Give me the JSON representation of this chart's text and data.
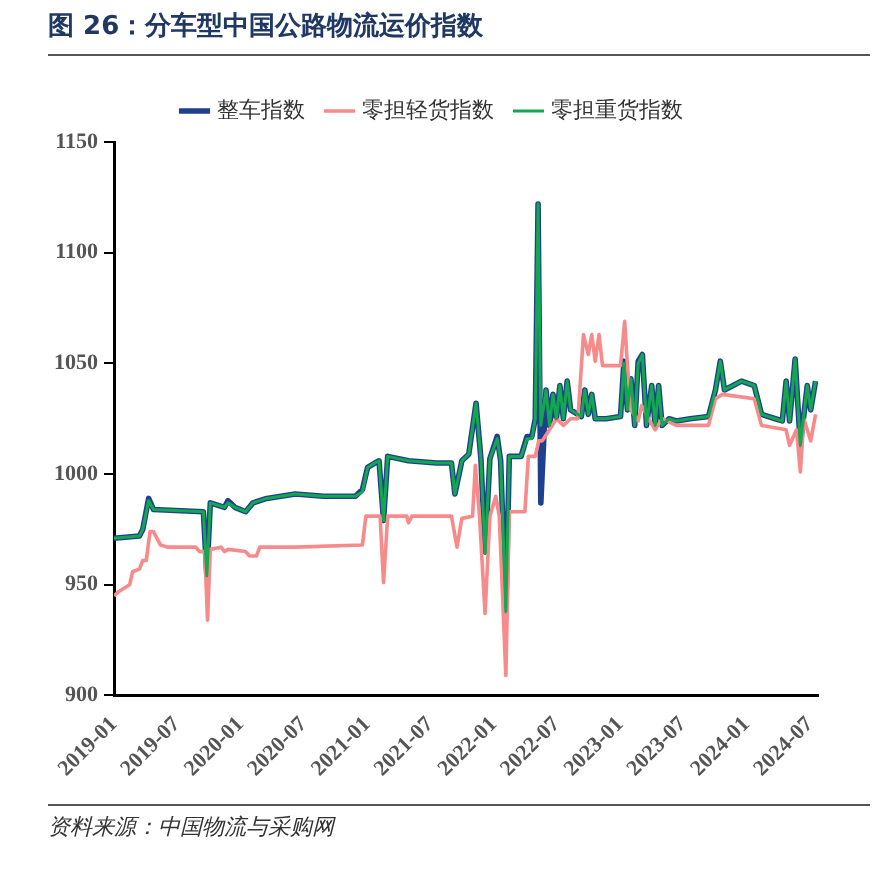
{
  "chart_data": {
    "type": "line",
    "title": "图 26：分车型中国公路物流运价指数",
    "annotations": [
      "资料来源：中国物流与采购网"
    ],
    "xlim": [
      "2019-01-01",
      "2024-07-25"
    ],
    "xticks": [
      "2019-01",
      "2019-07",
      "2020-01",
      "2020-07",
      "2021-01",
      "2021-07",
      "2022-01",
      "2022-07",
      "2023-01",
      "2023-07",
      "2024-01",
      "2024-07"
    ],
    "ylim": [
      900,
      1150
    ],
    "yticks": [
      900,
      950,
      1000,
      1050,
      1100,
      1150
    ],
    "grid": false,
    "legend": "top",
    "marker": "none",
    "line_style": "solid",
    "series": [
      {
        "name": "整车指数",
        "color": "#1f3f8f",
        "x": [
          "2019-01-01",
          "2019-03-15",
          "2019-03-25",
          "2019-04-11",
          "2019-04-25",
          "2019-09-16",
          "2019-09-26",
          "2019-10-06",
          "2019-11-16",
          "2019-11-26",
          "2019-12-16",
          "2020-01-16",
          "2020-02-06",
          "2020-03-17",
          "2020-06-07",
          "2020-08-28",
          "2020-11-28",
          "2020-12-18",
          "2021-01-02",
          "2021-01-23",
          "2021-02-04",
          "2021-02-17",
          "2021-03-01",
          "2021-04-30",
          "2021-07-20",
          "2021-09-01",
          "2021-09-11",
          "2021-10-01",
          "2021-10-21",
          "2021-11-11",
          "2021-11-25",
          "2021-12-07",
          "2021-12-21",
          "2022-01-11",
          "2022-01-21",
          "2022-02-05",
          "2022-02-15",
          "2022-03-21",
          "2022-04-07",
          "2022-04-21",
          "2022-05-01",
          "2022-05-09",
          "2022-05-17",
          "2022-06-01",
          "2022-06-11",
          "2022-06-21",
          "2022-07-01",
          "2022-07-11",
          "2022-07-21",
          "2022-08-01",
          "2022-08-11",
          "2022-09-11",
          "2022-09-21",
          "2022-10-01",
          "2022-10-11",
          "2022-10-21",
          "2022-11-21",
          "2023-01-02",
          "2023-01-12",
          "2023-01-22",
          "2023-02-01",
          "2023-02-12",
          "2023-02-22",
          "2023-03-06",
          "2023-03-18",
          "2023-04-02",
          "2023-04-12",
          "2023-04-22",
          "2023-05-02",
          "2023-05-22",
          "2023-06-12",
          "2023-07-22",
          "2023-09-13",
          "2023-10-03",
          "2023-10-17",
          "2023-10-29",
          "2023-11-23",
          "2023-12-17",
          "2024-01-23",
          "2024-02-13",
          "2024-03-24",
          "2024-04-13",
          "2024-04-24",
          "2024-05-04",
          "2024-05-20",
          "2024-06-04",
          "2024-06-24",
          "2024-07-04",
          "2024-07-18"
        ],
        "values": [
          971,
          972,
          975,
          989,
          984,
          983,
          954,
          987,
          985,
          988,
          985,
          983,
          987,
          989,
          991,
          990,
          990,
          993,
          1003,
          1005,
          1006,
          979,
          1008,
          1006,
          1005,
          1005,
          991,
          1006,
          1009,
          1032,
          1007,
          965,
          1007,
          1017,
          1006,
          938,
          1008,
          1008,
          1017,
          1017,
          1025,
          1122,
          987,
          1038,
          1022,
          1036,
          1025,
          1040,
          1025,
          1042,
          1029,
          1026,
          1038,
          1027,
          1036,
          1025,
          1025,
          1026,
          1051,
          1029,
          1043,
          1022,
          1051,
          1054,
          1022,
          1040,
          1022,
          1040,
          1022,
          1025,
          1024,
          1025,
          1026,
          1038,
          1051,
          1038,
          1040,
          1042,
          1040,
          1027,
          1025,
          1024,
          1042,
          1024,
          1052,
          1013,
          1040,
          1029,
          1042
        ]
      },
      {
        "name": "零担轻货指数",
        "color": "#f78a8a",
        "x": [
          "2019-01-01",
          "2019-01-15",
          "2019-02-15",
          "2019-02-24",
          "2019-03-15",
          "2019-03-25",
          "2019-04-04",
          "2019-04-15",
          "2019-04-25",
          "2019-05-15",
          "2019-06-05",
          "2019-08-25",
          "2019-09-05",
          "2019-09-20",
          "2019-09-28",
          "2019-10-06",
          "2019-11-06",
          "2019-11-16",
          "2019-11-26",
          "2020-01-16",
          "2020-01-27",
          "2020-02-16",
          "2020-02-26",
          "2020-06-07",
          "2020-12-18",
          "2020-12-28",
          "2021-02-07",
          "2021-02-17",
          "2021-03-01",
          "2021-04-25",
          "2021-04-30",
          "2021-05-10",
          "2021-09-01",
          "2021-09-17",
          "2021-10-01",
          "2021-11-01",
          "2021-11-09",
          "2021-11-21",
          "2021-12-07",
          "2021-12-21",
          "2022-01-07",
          "2022-01-17",
          "2022-02-05",
          "2022-02-15",
          "2022-04-01",
          "2022-04-11",
          "2022-05-01",
          "2022-05-11",
          "2022-05-21",
          "2022-06-11",
          "2022-07-01",
          "2022-07-21",
          "2022-08-11",
          "2022-09-01",
          "2022-09-17",
          "2022-10-01",
          "2022-10-11",
          "2022-10-21",
          "2022-11-01",
          "2022-11-11",
          "2023-01-02",
          "2023-01-14",
          "2023-01-22",
          "2023-02-01",
          "2023-02-22",
          "2023-03-04",
          "2023-03-24",
          "2023-04-12",
          "2023-05-02",
          "2023-06-12",
          "2023-09-13",
          "2023-10-03",
          "2023-10-23",
          "2024-01-23",
          "2024-02-13",
          "2024-04-24",
          "2024-05-04",
          "2024-05-24",
          "2024-06-04",
          "2024-06-14",
          "2024-07-04",
          "2024-07-18"
        ],
        "values": [
          945,
          947,
          950,
          956,
          957,
          961,
          961,
          974,
          974,
          968,
          967,
          967,
          965,
          965,
          934,
          966,
          967,
          965,
          966,
          965,
          963,
          963,
          967,
          967,
          968,
          981,
          981,
          951,
          981,
          981,
          978,
          981,
          981,
          967,
          980,
          981,
          1004,
          981,
          937,
          981,
          990,
          981,
          909,
          983,
          983,
          1008,
          1008,
          1015,
          1015,
          1020,
          1025,
          1022,
          1025,
          1025,
          1063,
          1054,
          1063,
          1051,
          1063,
          1049,
          1049,
          1069,
          1049,
          1029,
          1024,
          1031,
          1025,
          1020,
          1025,
          1022,
          1022,
          1034,
          1036,
          1034,
          1022,
          1020,
          1013,
          1020,
          1001,
          1025,
          1015,
          1027
        ]
      },
      {
        "name": "零担重货指数",
        "color": "#13a84f",
        "x": [
          "2019-01-01",
          "2019-03-15",
          "2019-03-25",
          "2019-04-11",
          "2019-04-25",
          "2019-09-16",
          "2019-09-26",
          "2019-10-06",
          "2019-11-16",
          "2019-11-26",
          "2019-12-16",
          "2020-01-16",
          "2020-02-06",
          "2020-03-17",
          "2020-06-07",
          "2020-08-28",
          "2020-11-28",
          "2020-12-18",
          "2021-01-02",
          "2021-01-23",
          "2021-02-04",
          "2021-02-17",
          "2021-03-01",
          "2021-04-30",
          "2021-07-20",
          "2021-09-01",
          "2021-09-11",
          "2021-10-01",
          "2021-10-21",
          "2021-11-11",
          "2021-11-25",
          "2021-12-07",
          "2021-12-21",
          "2022-01-11",
          "2022-01-21",
          "2022-02-05",
          "2022-02-15",
          "2022-03-21",
          "2022-04-07",
          "2022-04-21",
          "2022-05-01",
          "2022-05-09",
          "2022-05-17",
          "2022-06-01",
          "2022-06-11",
          "2022-06-21",
          "2022-07-01",
          "2022-07-11",
          "2022-07-21",
          "2022-08-01",
          "2022-08-11",
          "2022-09-11",
          "2022-09-21",
          "2022-10-01",
          "2022-10-11",
          "2022-10-21",
          "2022-11-21",
          "2023-01-02",
          "2023-01-12",
          "2023-01-22",
          "2023-02-01",
          "2023-02-12",
          "2023-02-22",
          "2023-03-06",
          "2023-03-18",
          "2023-04-02",
          "2023-04-12",
          "2023-04-22",
          "2023-05-02",
          "2023-05-22",
          "2023-06-12",
          "2023-07-22",
          "2023-09-13",
          "2023-10-03",
          "2023-10-17",
          "2023-10-29",
          "2023-11-23",
          "2023-12-17",
          "2024-01-23",
          "2024-02-13",
          "2024-03-24",
          "2024-04-13",
          "2024-04-24",
          "2024-05-04",
          "2024-05-20",
          "2024-06-04",
          "2024-06-24",
          "2024-07-04",
          "2024-07-18"
        ],
        "values": [
          971,
          972,
          975,
          988,
          984,
          983,
          954,
          987,
          985,
          987,
          985,
          983,
          987,
          989,
          991,
          990,
          990,
          992,
          1003,
          1005,
          1006,
          979,
          1008,
          1006,
          1005,
          1005,
          991,
          1006,
          1009,
          1032,
          1007,
          964,
          1007,
          1016,
          1006,
          938,
          1008,
          1008,
          1016,
          1016,
          1025,
          1122,
          1022,
          1038,
          1022,
          1036,
          1025,
          1040,
          1025,
          1042,
          1029,
          1026,
          1038,
          1027,
          1036,
          1025,
          1025,
          1026,
          1050,
          1029,
          1043,
          1022,
          1050,
          1054,
          1022,
          1040,
          1022,
          1040,
          1022,
          1025,
          1024,
          1025,
          1026,
          1038,
          1051,
          1038,
          1040,
          1042,
          1040,
          1027,
          1025,
          1024,
          1042,
          1024,
          1052,
          1013,
          1040,
          1029,
          1042
        ]
      }
    ]
  }
}
